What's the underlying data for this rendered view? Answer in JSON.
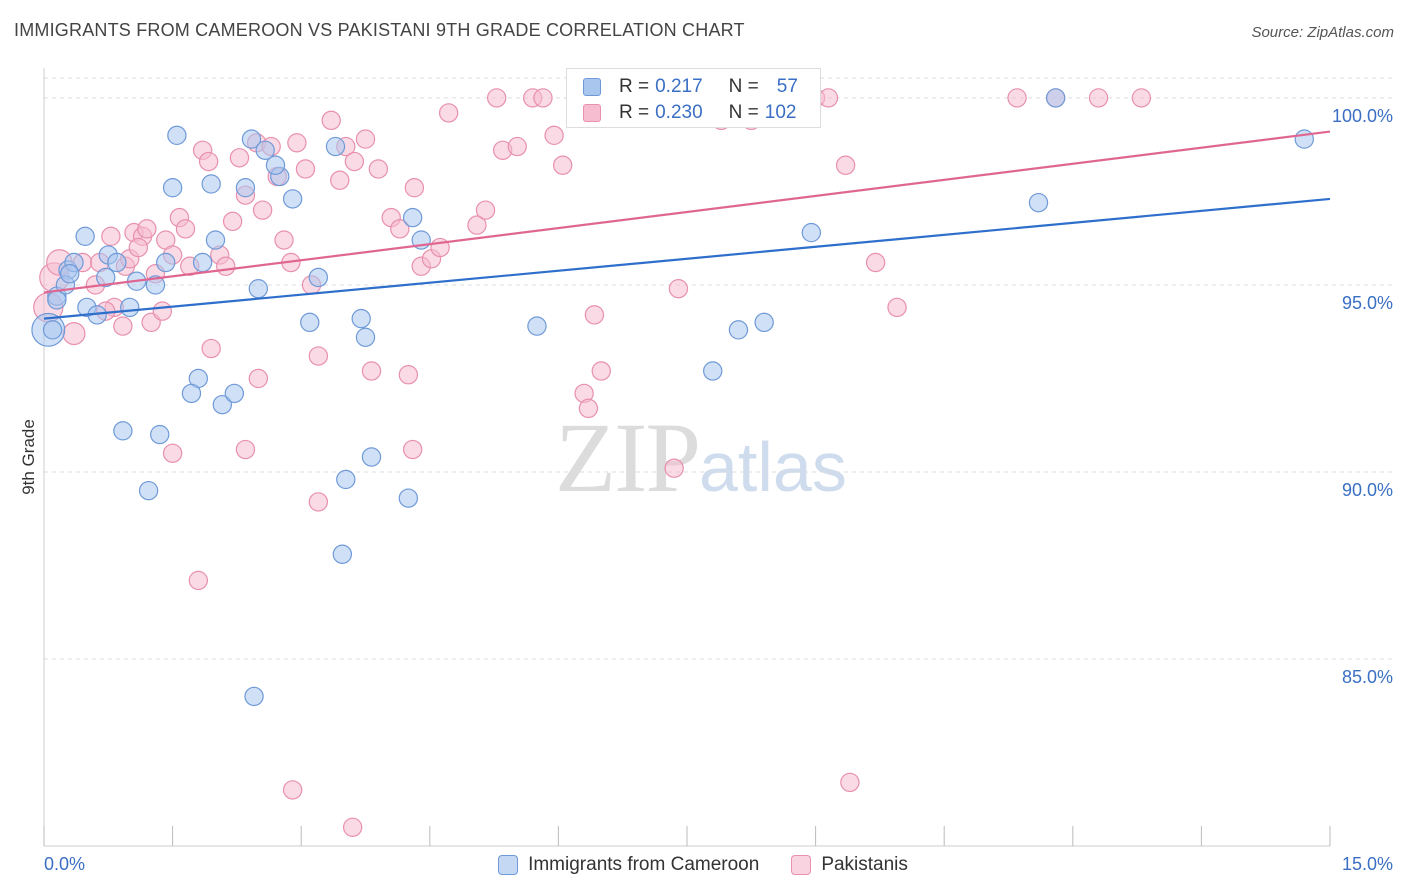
{
  "header": {
    "title": "IMMIGRANTS FROM CAMEROON VS PAKISTANI 9TH GRADE CORRELATION CHART",
    "source": "Source: ZipAtlas.com"
  },
  "legend": {
    "r_label": "R =",
    "n_label": "N =",
    "series1_r": "0.217",
    "series1_n": "57",
    "series2_r": "0.230",
    "series2_n": "102"
  },
  "watermark": {
    "zip": "ZIP",
    "atlas": "atlas"
  },
  "colors": {
    "blue_fill": "#a9c6ee",
    "blue_stroke": "#6f9ad8",
    "blue_line": "#2f6fcc",
    "pink_fill": "#f6bcd0",
    "pink_stroke": "#e890ae",
    "pink_line": "#e06692",
    "axis_label": "#3a6fc4",
    "grid": "#dddddd"
  },
  "chart_data": {
    "type": "scatter",
    "title": "IMMIGRANTS FROM CAMEROON VS PAKISTANI 9TH GRADE CORRELATION CHART",
    "xlabel": "",
    "ylabel": "9th Grade",
    "xlim": [
      0,
      15
    ],
    "ylim": [
      80,
      100.8
    ],
    "x_tick_labels": [
      "0.0%",
      "15.0%"
    ],
    "y_ticks": [
      85,
      90,
      95,
      100
    ],
    "y_tick_labels": [
      "85.0%",
      "90.0%",
      "95.0%",
      "100.0%"
    ],
    "grid": true,
    "legend_position": "top-center",
    "series": [
      {
        "name": "Immigrants from Cameroon",
        "r": 0.217,
        "n": 57,
        "trend": {
          "x": [
            0,
            15
          ],
          "y": [
            94.1,
            97.3
          ]
        },
        "points": [
          [
            0.05,
            93.8,
            18
          ],
          [
            0.1,
            93.8,
            10
          ],
          [
            0.15,
            94.7,
            10
          ],
          [
            0.28,
            95.4,
            10
          ],
          [
            0.25,
            95.0,
            10
          ],
          [
            0.35,
            95.6,
            10
          ],
          [
            0.5,
            94.4,
            10
          ],
          [
            0.62,
            94.2,
            10
          ],
          [
            0.72,
            95.2,
            10
          ],
          [
            0.75,
            95.8,
            10
          ],
          [
            0.48,
            96.3,
            10
          ],
          [
            0.85,
            95.6,
            10
          ],
          [
            1.0,
            94.4,
            10
          ],
          [
            1.08,
            95.1,
            10
          ],
          [
            1.3,
            95.0,
            10
          ],
          [
            1.42,
            95.6,
            10
          ],
          [
            1.5,
            97.6,
            10
          ],
          [
            1.55,
            99.0,
            10
          ],
          [
            1.95,
            97.7,
            10
          ],
          [
            1.85,
            95.6,
            10
          ],
          [
            2.0,
            96.2,
            10
          ],
          [
            2.35,
            97.6,
            10
          ],
          [
            2.42,
            98.9,
            10
          ],
          [
            2.58,
            98.6,
            10
          ],
          [
            2.75,
            97.9,
            10
          ],
          [
            2.7,
            98.2,
            10
          ],
          [
            2.9,
            97.3,
            10
          ],
          [
            2.5,
            94.9,
            10
          ],
          [
            3.2,
            95.2,
            10
          ],
          [
            3.1,
            94.0,
            10
          ],
          [
            3.4,
            98.7,
            10
          ],
          [
            3.7,
            94.1,
            10
          ],
          [
            3.75,
            93.6,
            10
          ],
          [
            4.3,
            96.8,
            10
          ],
          [
            4.4,
            96.2,
            10
          ],
          [
            5.75,
            93.9,
            10
          ],
          [
            1.8,
            92.5,
            10
          ],
          [
            1.72,
            92.1,
            10
          ],
          [
            2.08,
            91.8,
            10
          ],
          [
            2.22,
            92.1,
            10
          ],
          [
            0.92,
            91.1,
            10
          ],
          [
            1.35,
            91.0,
            10
          ],
          [
            1.22,
            89.5,
            10
          ],
          [
            3.52,
            89.8,
            10
          ],
          [
            3.82,
            90.4,
            10
          ],
          [
            4.25,
            89.3,
            10
          ],
          [
            3.48,
            87.8,
            10
          ],
          [
            2.45,
            84.0,
            10
          ],
          [
            7.8,
            92.7,
            10
          ],
          [
            8.1,
            93.8,
            10
          ],
          [
            8.4,
            94.0,
            10
          ],
          [
            8.95,
            96.4,
            10
          ],
          [
            11.6,
            97.2,
            10
          ],
          [
            11.8,
            100.0,
            10
          ],
          [
            14.7,
            98.9,
            10
          ],
          [
            0.15,
            94.6,
            10
          ],
          [
            0.3,
            95.3,
            10
          ]
        ]
      },
      {
        "name": "Pakistanis",
        "r": 0.23,
        "n": 102,
        "trend": {
          "x": [
            0,
            15
          ],
          "y": [
            94.8,
            99.1
          ]
        },
        "points": [
          [
            0.05,
            94.4,
            16
          ],
          [
            0.12,
            95.2,
            16
          ],
          [
            0.18,
            95.6,
            14
          ],
          [
            0.35,
            93.7,
            12
          ],
          [
            0.45,
            95.6,
            10
          ],
          [
            0.6,
            95.0,
            10
          ],
          [
            0.78,
            96.3,
            10
          ],
          [
            0.82,
            94.4,
            10
          ],
          [
            0.92,
            93.9,
            10
          ],
          [
            0.95,
            95.5,
            10
          ],
          [
            1.0,
            95.7,
            10
          ],
          [
            1.05,
            96.4,
            10
          ],
          [
            1.15,
            96.3,
            10
          ],
          [
            1.2,
            96.5,
            10
          ],
          [
            1.25,
            94.0,
            10
          ],
          [
            1.3,
            95.3,
            10
          ],
          [
            1.38,
            94.3,
            10
          ],
          [
            1.42,
            96.2,
            10
          ],
          [
            1.5,
            95.8,
            10
          ],
          [
            1.58,
            96.8,
            10
          ],
          [
            1.65,
            96.5,
            10
          ],
          [
            1.7,
            95.5,
            10
          ],
          [
            1.85,
            98.6,
            10
          ],
          [
            1.92,
            98.3,
            10
          ],
          [
            2.05,
            95.8,
            10
          ],
          [
            2.12,
            95.5,
            10
          ],
          [
            2.2,
            96.7,
            10
          ],
          [
            2.28,
            98.4,
            10
          ],
          [
            2.35,
            97.4,
            10
          ],
          [
            2.48,
            98.8,
            10
          ],
          [
            2.55,
            97.0,
            10
          ],
          [
            2.65,
            98.7,
            10
          ],
          [
            2.72,
            97.9,
            10
          ],
          [
            2.8,
            96.2,
            10
          ],
          [
            2.88,
            95.6,
            10
          ],
          [
            2.95,
            98.8,
            10
          ],
          [
            3.05,
            98.1,
            10
          ],
          [
            3.12,
            95.0,
            10
          ],
          [
            3.2,
            93.1,
            10
          ],
          [
            3.35,
            99.4,
            10
          ],
          [
            3.45,
            97.8,
            10
          ],
          [
            3.52,
            98.7,
            10
          ],
          [
            3.62,
            98.3,
            10
          ],
          [
            3.75,
            98.9,
            10
          ],
          [
            3.82,
            92.7,
            10
          ],
          [
            3.9,
            98.1,
            10
          ],
          [
            4.05,
            96.8,
            10
          ],
          [
            4.15,
            96.5,
            10
          ],
          [
            4.25,
            92.6,
            10
          ],
          [
            4.32,
            97.6,
            10
          ],
          [
            4.4,
            95.5,
            10
          ],
          [
            4.52,
            95.7,
            10
          ],
          [
            4.62,
            96.0,
            10
          ],
          [
            4.72,
            99.6,
            10
          ],
          [
            5.05,
            96.6,
            10
          ],
          [
            5.15,
            97.0,
            10
          ],
          [
            5.28,
            100.0,
            10
          ],
          [
            5.35,
            98.6,
            10
          ],
          [
            5.52,
            98.7,
            10
          ],
          [
            5.7,
            100.0,
            10
          ],
          [
            5.82,
            100.0,
            10
          ],
          [
            5.95,
            99.0,
            10
          ],
          [
            6.05,
            98.2,
            10
          ],
          [
            6.2,
            100.0,
            10
          ],
          [
            6.3,
            92.1,
            10
          ],
          [
            6.35,
            91.7,
            10
          ],
          [
            6.42,
            94.2,
            10
          ],
          [
            6.5,
            92.7,
            10
          ],
          [
            6.8,
            100.0,
            10
          ],
          [
            7.05,
            100.0,
            10
          ],
          [
            7.25,
            100.0,
            10
          ],
          [
            7.35,
            90.1,
            10
          ],
          [
            7.4,
            94.9,
            10
          ],
          [
            7.8,
            100.0,
            10
          ],
          [
            7.9,
            99.4,
            10
          ],
          [
            8.1,
            100.0,
            10
          ],
          [
            8.25,
            99.4,
            10
          ],
          [
            8.5,
            100.0,
            10
          ],
          [
            8.7,
            100.0,
            10
          ],
          [
            8.85,
            100.0,
            10
          ],
          [
            9.0,
            100.0,
            10
          ],
          [
            9.15,
            100.0,
            10
          ],
          [
            9.35,
            98.2,
            10
          ],
          [
            9.7,
            95.6,
            10
          ],
          [
            9.95,
            94.4,
            10
          ],
          [
            11.35,
            100.0,
            10
          ],
          [
            11.8,
            100.0,
            10
          ],
          [
            12.3,
            100.0,
            10
          ],
          [
            12.8,
            100.0,
            10
          ],
          [
            1.5,
            90.5,
            10
          ],
          [
            2.35,
            90.6,
            10
          ],
          [
            2.5,
            92.5,
            10
          ],
          [
            1.95,
            93.3,
            10
          ],
          [
            3.2,
            89.2,
            10
          ],
          [
            4.3,
            90.6,
            10
          ],
          [
            1.8,
            87.1,
            10
          ],
          [
            2.9,
            81.5,
            10
          ],
          [
            3.6,
            80.5,
            10
          ],
          [
            9.4,
            81.7,
            10
          ],
          [
            0.65,
            95.6,
            10
          ],
          [
            0.72,
            94.3,
            10
          ],
          [
            1.1,
            96.0,
            10
          ]
        ]
      }
    ]
  }
}
